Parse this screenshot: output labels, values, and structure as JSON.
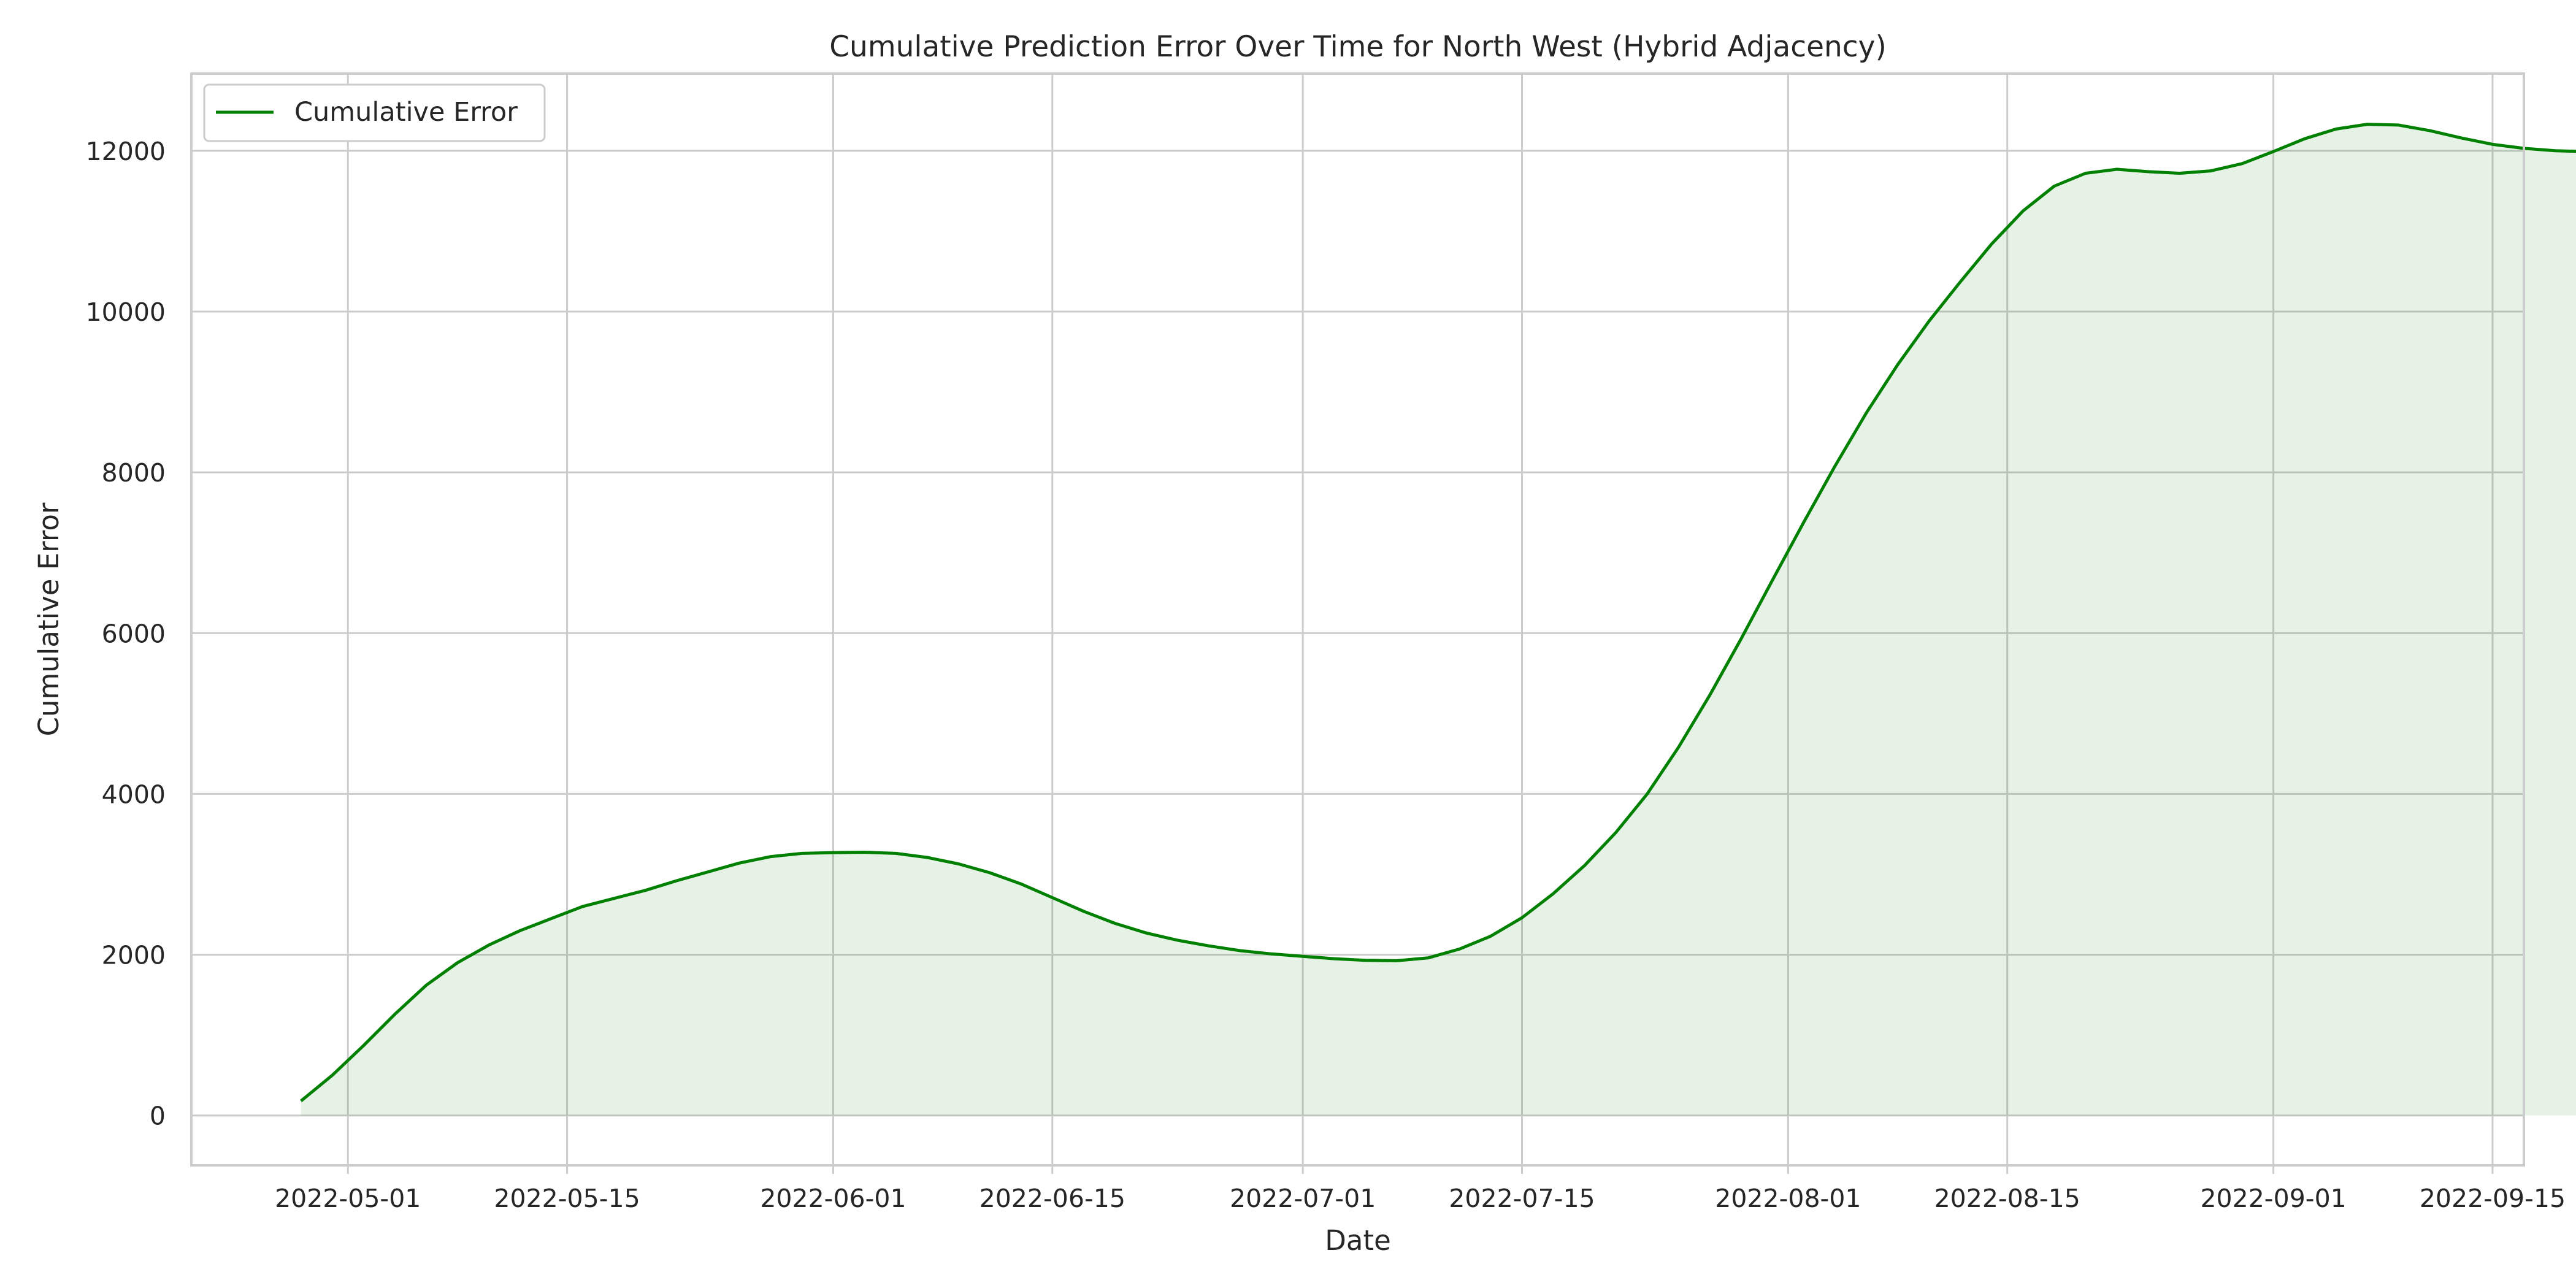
{
  "chart_data": {
    "type": "area",
    "title": "Cumulative Prediction Error Over Time for North West (Hybrid Adjacency)",
    "xlabel": "Date",
    "ylabel": "Cumulative Error",
    "x_range": [
      "2022-04-21",
      "2022-09-17"
    ],
    "ylim": [
      -620,
      12960
    ],
    "yticks": [
      0,
      2000,
      4000,
      6000,
      8000,
      10000,
      12000
    ],
    "xticks": [
      "2022-05-01",
      "2022-05-15",
      "2022-06-01",
      "2022-06-15",
      "2022-07-01",
      "2022-07-15",
      "2022-08-01",
      "2022-08-15",
      "2022-09-01",
      "2022-09-15"
    ],
    "grid": true,
    "legend": {
      "position": "upper-left",
      "entries": [
        "Cumulative Error"
      ]
    },
    "colors": {
      "line": "#008000",
      "fill": "#008000",
      "grid": "#cccccc",
      "spine": "#cccccc"
    },
    "series": [
      {
        "name": "Cumulative Error",
        "points": [
          [
            "2022-04-28",
            180
          ],
          [
            "2022-04-30",
            500
          ],
          [
            "2022-05-02",
            870
          ],
          [
            "2022-05-04",
            1260
          ],
          [
            "2022-05-06",
            1620
          ],
          [
            "2022-05-08",
            1900
          ],
          [
            "2022-05-10",
            2120
          ],
          [
            "2022-05-12",
            2300
          ],
          [
            "2022-05-14",
            2450
          ],
          [
            "2022-05-16",
            2600
          ],
          [
            "2022-05-18",
            2700
          ],
          [
            "2022-05-20",
            2800
          ],
          [
            "2022-05-22",
            2920
          ],
          [
            "2022-05-24",
            3030
          ],
          [
            "2022-05-26",
            3140
          ],
          [
            "2022-05-28",
            3220
          ],
          [
            "2022-05-30",
            3260
          ],
          [
            "2022-06-01",
            3270
          ],
          [
            "2022-06-03",
            3275
          ],
          [
            "2022-06-05",
            3260
          ],
          [
            "2022-06-07",
            3210
          ],
          [
            "2022-06-09",
            3130
          ],
          [
            "2022-06-11",
            3020
          ],
          [
            "2022-06-13",
            2880
          ],
          [
            "2022-06-15",
            2710
          ],
          [
            "2022-06-17",
            2540
          ],
          [
            "2022-06-19",
            2390
          ],
          [
            "2022-06-21",
            2270
          ],
          [
            "2022-06-23",
            2180
          ],
          [
            "2022-06-25",
            2110
          ],
          [
            "2022-06-27",
            2050
          ],
          [
            "2022-06-29",
            2010
          ],
          [
            "2022-07-01",
            1980
          ],
          [
            "2022-07-03",
            1950
          ],
          [
            "2022-07-05",
            1930
          ],
          [
            "2022-07-07",
            1925
          ],
          [
            "2022-07-09",
            1960
          ],
          [
            "2022-07-11",
            2070
          ],
          [
            "2022-07-13",
            2230
          ],
          [
            "2022-07-15",
            2460
          ],
          [
            "2022-07-17",
            2760
          ],
          [
            "2022-07-19",
            3110
          ],
          [
            "2022-07-21",
            3520
          ],
          [
            "2022-07-23",
            4000
          ],
          [
            "2022-07-25",
            4580
          ],
          [
            "2022-07-27",
            5230
          ],
          [
            "2022-07-29",
            5930
          ],
          [
            "2022-07-31",
            6660
          ],
          [
            "2022-08-02",
            7380
          ],
          [
            "2022-08-04",
            8080
          ],
          [
            "2022-08-06",
            8740
          ],
          [
            "2022-08-08",
            9340
          ],
          [
            "2022-08-10",
            9880
          ],
          [
            "2022-08-12",
            10370
          ],
          [
            "2022-08-14",
            10840
          ],
          [
            "2022-08-16",
            11250
          ],
          [
            "2022-08-18",
            11560
          ],
          [
            "2022-08-20",
            11720
          ],
          [
            "2022-08-22",
            11770
          ],
          [
            "2022-08-24",
            11740
          ],
          [
            "2022-08-26",
            11720
          ],
          [
            "2022-08-28",
            11750
          ],
          [
            "2022-08-30",
            11840
          ],
          [
            "2022-09-01",
            11990
          ],
          [
            "2022-09-03",
            12150
          ],
          [
            "2022-09-05",
            12270
          ],
          [
            "2022-09-07",
            12330
          ],
          [
            "2022-09-09",
            12320
          ],
          [
            "2022-09-11",
            12250
          ],
          [
            "2022-09-13",
            12160
          ],
          [
            "2022-09-15",
            12080
          ],
          [
            "2022-09-17",
            12030
          ],
          [
            "2022-09-19",
            12000
          ],
          [
            "2022-09-21",
            11990
          ]
        ]
      }
    ]
  }
}
